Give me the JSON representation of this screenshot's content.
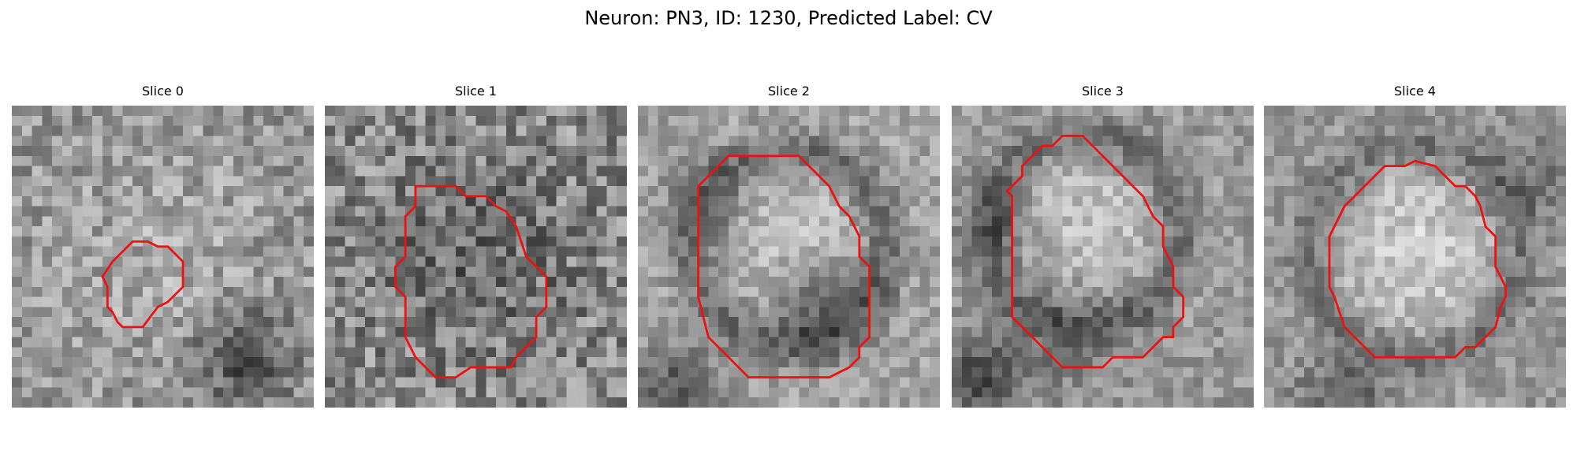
{
  "figure": {
    "title": "Neuron: PN3, ID: 1230, Predicted Label: CV"
  },
  "panels": [
    {
      "title": "Slice 0"
    },
    {
      "title": "Slice 1"
    },
    {
      "title": "Slice 2"
    },
    {
      "title": "Slice 3"
    },
    {
      "title": "Slice 4"
    }
  ],
  "colors": {
    "contour": "#ee1111",
    "background": "#ffffff"
  }
}
